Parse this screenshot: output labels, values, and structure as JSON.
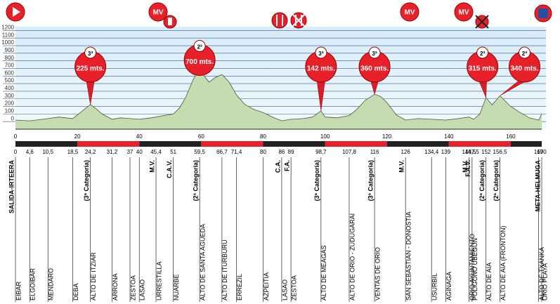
{
  "chart_data": {
    "type": "area",
    "x": [
      0,
      4.6,
      10.5,
      14,
      18.5,
      21,
      24.2,
      26,
      28,
      31.2,
      34,
      37,
      40,
      43,
      45.4,
      48,
      51,
      53,
      55,
      57.5,
      59.5,
      61,
      62.5,
      64.5,
      66.7,
      69,
      71.4,
      74,
      77,
      80,
      83,
      86,
      89,
      93,
      96,
      98.7,
      100,
      104,
      107.8,
      110,
      113,
      116,
      118,
      120,
      123,
      126,
      130,
      134.4,
      139,
      143,
      146.5,
      148,
      150,
      152,
      154,
      156.5,
      158,
      160,
      163,
      166,
      169,
      170
    ],
    "values": [
      20,
      10,
      40,
      60,
      40,
      120,
      225,
      170,
      100,
      30,
      50,
      40,
      30,
      45,
      60,
      80,
      100,
      180,
      320,
      560,
      700,
      600,
      520,
      580,
      620,
      520,
      350,
      230,
      160,
      120,
      60,
      10,
      30,
      40,
      60,
      142,
      60,
      50,
      80,
      150,
      280,
      360,
      330,
      250,
      90,
      20,
      40,
      30,
      20,
      40,
      60,
      30,
      100,
      315,
      220,
      340,
      280,
      200,
      120,
      50,
      20,
      100
    ],
    "xlim": [
      0,
      170
    ],
    "ylim": [
      -100,
      1250
    ],
    "xticks": [
      0,
      20,
      40,
      60,
      80,
      100,
      120,
      140,
      160
    ],
    "yticks": [
      0,
      100,
      200,
      300,
      400,
      500,
      600,
      700,
      800,
      900,
      1000,
      1100,
      1200
    ],
    "grid": true,
    "color": "#c5dcb0",
    "climbs": [
      {
        "km": 24.2,
        "altitude": 225,
        "category": "3ª",
        "label": "225 mts."
      },
      {
        "km": 59.5,
        "altitude": 700,
        "category": "2ª",
        "label": "700 mts."
      },
      {
        "km": 98.7,
        "altitude": 142,
        "category": "3ª",
        "label": "142 mts."
      },
      {
        "km": 116,
        "altitude": 360,
        "category": "3ª",
        "label": "360 mts."
      },
      {
        "km": 152,
        "altitude": 315,
        "category": "2ª",
        "label": "315 mts."
      },
      {
        "km": 156.5,
        "altitude": 340,
        "category": "2ª",
        "label": "340 mts."
      }
    ],
    "markers": [
      "MV",
      "MV",
      "MV"
    ],
    "places": [
      {
        "km": 0,
        "top": "SALIDA-IRTEERA",
        "name": "EIBAR"
      },
      {
        "km": {
          "value": 4.6,
          "label": "4,6"
        },
        "name": "ELGOIBAR"
      },
      {
        "km": {
          "value": 10.5,
          "label": "10,5"
        },
        "name": "MENDARO"
      },
      {
        "km": {
          "value": 18.5,
          "label": "18,5"
        },
        "name": "DEBA"
      },
      {
        "km": {
          "value": 24.2,
          "label": "24,2"
        },
        "top": "(3ª Categoría)",
        "name": "ALTO DE ITZIAR"
      },
      {
        "km": {
          "value": 31.2,
          "label": "31,2"
        },
        "name": "ARRONA"
      },
      {
        "km": 37,
        "name": "ZESTOA"
      },
      {
        "km": 40,
        "name": "LASAO"
      },
      {
        "km": {
          "value": 45.4,
          "label": "45,4"
        },
        "top": "M.V.",
        "name": "URRESTILLA"
      },
      {
        "km": 51,
        "top": "C.A.V.",
        "name": "NUARBE"
      },
      {
        "km": {
          "value": 59.5,
          "label": "59,5"
        },
        "top": "(2ª Categoría)",
        "name": "ALTO DE SANTA AGUEDA"
      },
      {
        "km": {
          "value": 66.7,
          "label": "66,7"
        },
        "name": "ALTO DE ITURBURU"
      },
      {
        "km": {
          "value": 71.4,
          "label": "71,4"
        },
        "name": "ERREZIL"
      },
      {
        "km": 80,
        "name": "AZPEITIA"
      },
      {
        "km": 86,
        "top": "C.A.",
        "name": "LASAO"
      },
      {
        "km": 89,
        "top": "F.A.",
        "name": "ZESTOA"
      },
      {
        "km": {
          "value": 98.7,
          "label": "98,7"
        },
        "top": "(3ª Categoría)",
        "name": "ALTO DE MEAGAS"
      },
      {
        "km": {
          "value": 107.8,
          "label": "107,8"
        },
        "name": "ALTO DE ORIO - ZUDUGARAI"
      },
      {
        "km": 116,
        "top": "(3ª Categoría)",
        "name": "VENTAS DE ORIO"
      },
      {
        "km": 126,
        "top": "M.V.",
        "name": "SAN SEBASTIAN - DONOSTIA"
      },
      {
        "km": {
          "value": 134.4,
          "label": "134,4"
        },
        "name": "USURBIL"
      },
      {
        "km": 139,
        "name": "AGINAGA"
      },
      {
        "km": {
          "value": 146.5,
          "label": "146,5"
        },
        "top": "M.V.",
        "name": "ORIO AYUNTAMIENTO"
      },
      {
        "km": {
          "value": 147.5,
          "label": "147,5"
        },
        "top": "F.A.V.",
        "name": "POLIGONO UBEGUN"
      },
      {
        "km": 152,
        "top": "(2ª Categoría)",
        "name": "ALTO DE AIA"
      },
      {
        "km": {
          "value": 156.5,
          "label": "156,5"
        },
        "top": "(2ª Categoría)",
        "name": "ALTO DE AIA (FRONTON)"
      },
      {
        "km": 169,
        "name": "ALTO DE TXANKA"
      },
      {
        "km": 170,
        "top": "META-HELMUGA",
        "name": "ORIO PLAYA"
      }
    ]
  }
}
